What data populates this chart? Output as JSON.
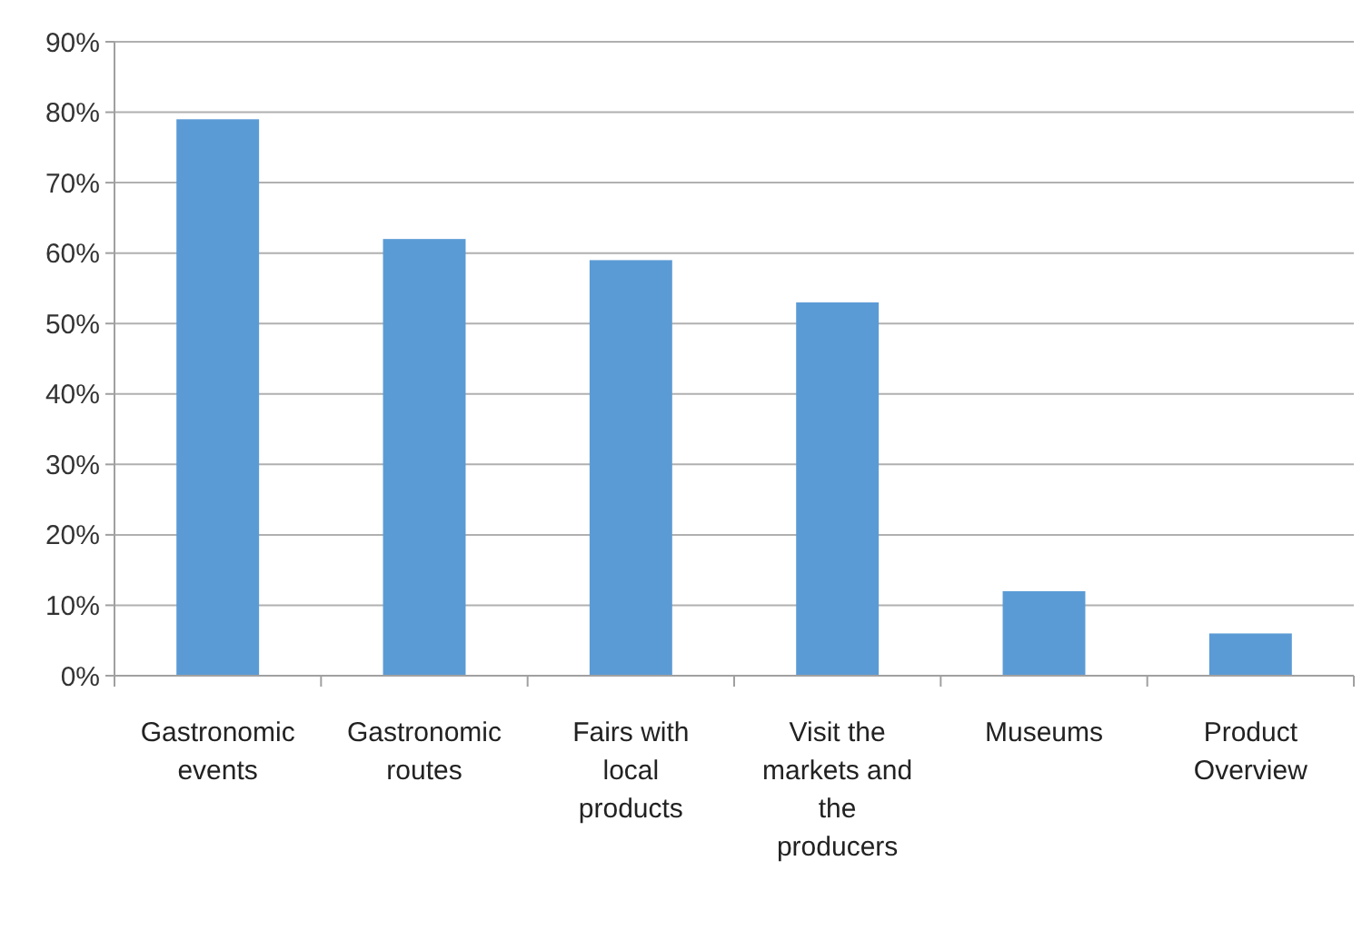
{
  "chart_data": {
    "type": "bar",
    "categories": [
      "Gastronomic\nevents",
      "Gastronomic\nroutes",
      "Fairs with\nlocal\nproducts",
      "Visit the\nmarkets and\nthe\nproducers",
      "Museums",
      "Product\nOverview"
    ],
    "values": [
      79,
      62,
      59,
      53,
      12,
      6
    ],
    "color": "#5b9bd5",
    "ylim": [
      0,
      90
    ],
    "yticks": [
      {
        "value": 0,
        "label": "0%"
      },
      {
        "value": 10,
        "label": "10%"
      },
      {
        "value": 20,
        "label": "20%"
      },
      {
        "value": 30,
        "label": "30%"
      },
      {
        "value": 40,
        "label": "40%"
      },
      {
        "value": 50,
        "label": "50%"
      },
      {
        "value": 60,
        "label": "60%"
      },
      {
        "value": 70,
        "label": "70%"
      },
      {
        "value": 80,
        "label": "80%"
      },
      {
        "value": 90,
        "label": "90%"
      }
    ],
    "grid": "y"
  }
}
